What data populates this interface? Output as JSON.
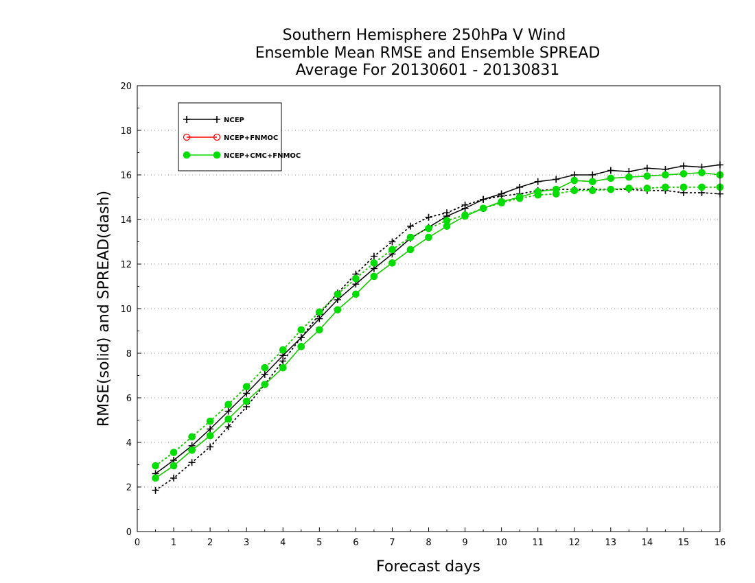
{
  "chart_data": {
    "type": "line",
    "title": [
      "Southern Hemisphere 250hPa V Wind",
      "Ensemble Mean RMSE and Ensemble SPREAD",
      "Average For 20130601 - 20130831"
    ],
    "xlabel": "Forecast days",
    "ylabel": "RMSE(solid) and SPREAD(dash)",
    "xlim": [
      0,
      16
    ],
    "ylim": [
      0,
      20
    ],
    "xticks": [
      0,
      1,
      2,
      3,
      4,
      5,
      6,
      7,
      8,
      9,
      10,
      11,
      12,
      13,
      14,
      15,
      16
    ],
    "yticks": [
      0,
      2,
      4,
      6,
      8,
      10,
      12,
      14,
      16,
      18,
      20
    ],
    "grid": "horizontal dotted",
    "legend_position": "top-left",
    "x": [
      0.5,
      1,
      1.5,
      2,
      2.5,
      3,
      3.5,
      4,
      4.5,
      5,
      5.5,
      6,
      6.5,
      7,
      7.5,
      8,
      8.5,
      9,
      9.5,
      10,
      10.5,
      11,
      11.5,
      12,
      12.5,
      13,
      13.5,
      14,
      14.5,
      15,
      15.5,
      16
    ],
    "series": [
      {
        "name": "NCEP",
        "color": "#000000",
        "marker": "plus",
        "rmse": [
          2.6,
          3.2,
          3.85,
          4.6,
          5.4,
          6.2,
          7.05,
          7.9,
          8.7,
          9.55,
          10.4,
          11.1,
          11.8,
          12.45,
          13.15,
          13.65,
          14.15,
          14.5,
          14.9,
          15.15,
          15.45,
          15.7,
          15.8,
          16.0,
          16.0,
          16.2,
          16.15,
          16.3,
          16.25,
          16.4,
          16.35,
          16.45
        ],
        "spread": [
          1.85,
          2.4,
          3.1,
          3.8,
          4.7,
          5.6,
          6.6,
          7.65,
          8.7,
          9.75,
          10.7,
          11.55,
          12.35,
          13.0,
          13.7,
          14.1,
          14.3,
          14.65,
          14.9,
          15.05,
          15.15,
          15.3,
          15.35,
          15.35,
          15.35,
          15.35,
          15.35,
          15.3,
          15.3,
          15.2,
          15.2,
          15.15
        ]
      },
      {
        "name": "NCEP+FNMOC",
        "color": "#ff0000",
        "marker": "circle-open",
        "rmse": [
          2.4,
          2.95,
          3.65,
          4.3,
          5.05,
          5.85,
          6.6,
          7.35,
          8.3,
          9.05,
          9.95,
          10.65,
          11.45,
          12.05,
          12.65,
          13.2,
          13.7,
          14.15,
          14.5,
          14.8,
          15.0,
          15.25,
          15.35,
          15.75,
          15.7,
          15.85,
          15.9,
          15.95,
          16.0,
          16.05,
          16.1,
          16.0
        ],
        "spread": [
          2.95,
          3.55,
          4.25,
          4.95,
          5.7,
          6.5,
          7.35,
          8.15,
          9.05,
          9.85,
          10.65,
          11.35,
          12.05,
          12.65,
          13.2,
          13.6,
          13.95,
          14.2,
          14.5,
          14.75,
          14.95,
          15.1,
          15.15,
          15.3,
          15.3,
          15.35,
          15.4,
          15.4,
          15.45,
          15.45,
          15.45,
          15.45
        ]
      },
      {
        "name": "NCEP+CMC+FNMOC",
        "color": "#00dd00",
        "marker": "circle-filled",
        "rmse": [
          2.4,
          2.95,
          3.65,
          4.3,
          5.05,
          5.85,
          6.6,
          7.35,
          8.3,
          9.05,
          9.95,
          10.65,
          11.45,
          12.05,
          12.65,
          13.2,
          13.7,
          14.15,
          14.5,
          14.8,
          15.0,
          15.25,
          15.35,
          15.75,
          15.7,
          15.85,
          15.9,
          15.95,
          16.0,
          16.05,
          16.1,
          16.0
        ],
        "spread": [
          2.95,
          3.55,
          4.25,
          4.95,
          5.7,
          6.5,
          7.35,
          8.15,
          9.05,
          9.85,
          10.65,
          11.35,
          12.05,
          12.65,
          13.2,
          13.6,
          13.95,
          14.2,
          14.5,
          14.75,
          14.95,
          15.1,
          15.15,
          15.3,
          15.3,
          15.35,
          15.4,
          15.4,
          15.45,
          15.45,
          15.45,
          15.45
        ]
      }
    ]
  }
}
